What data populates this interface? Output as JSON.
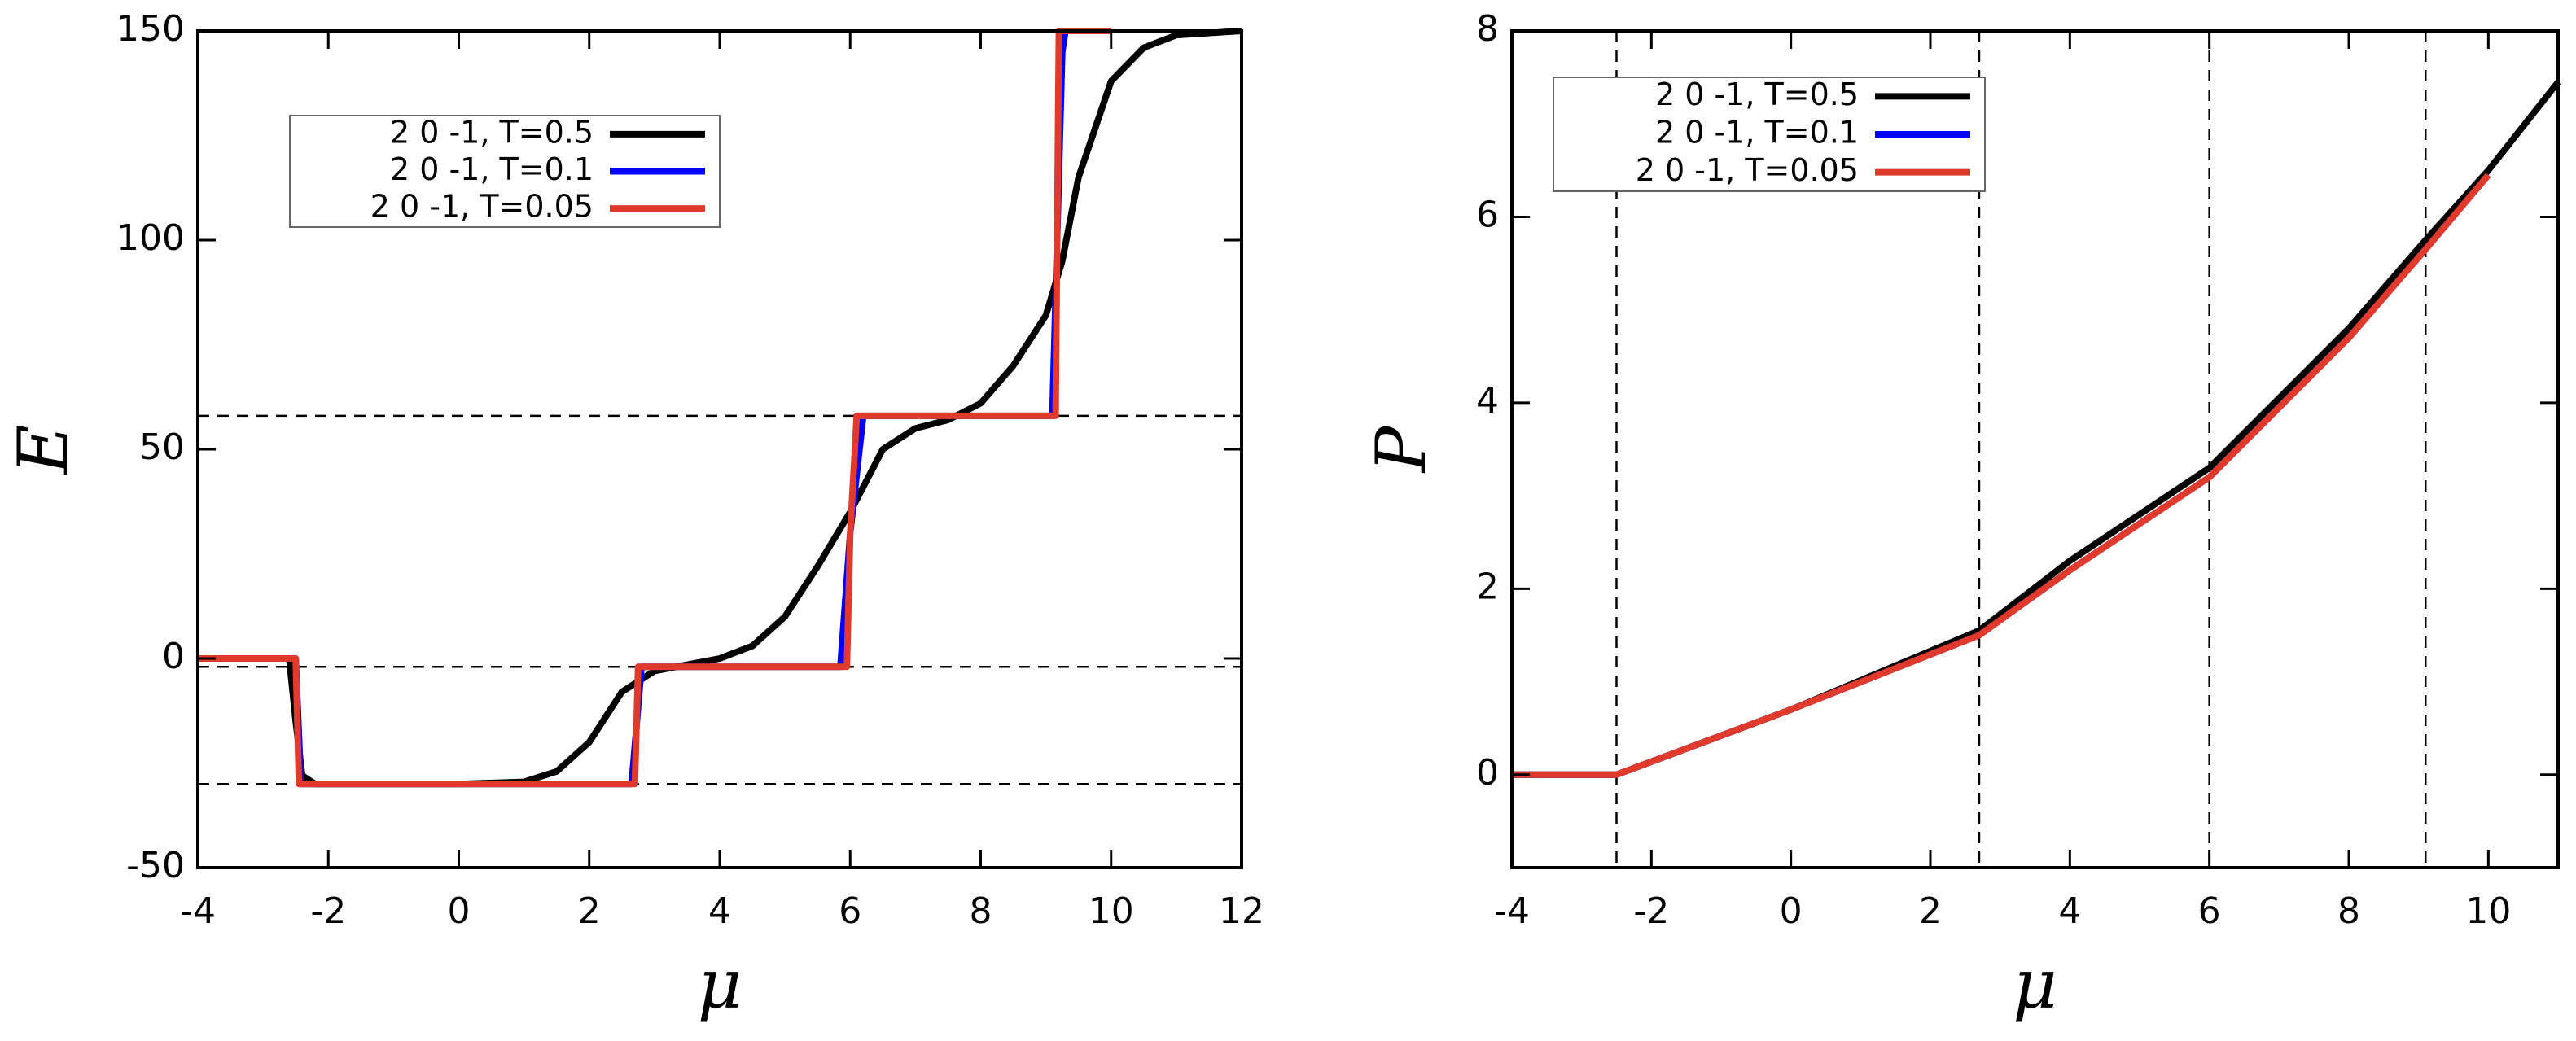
{
  "chart_data": [
    {
      "type": "line",
      "xlabel": "μ",
      "ylabel": "E",
      "xlim": [
        -4,
        12
      ],
      "ylim": [
        -50,
        150
      ],
      "xticks": [
        -4,
        -2,
        0,
        2,
        4,
        6,
        8,
        10,
        12
      ],
      "yticks": [
        -50,
        0,
        50,
        100,
        150
      ],
      "hlines": [
        58,
        -2,
        -30
      ],
      "legend": "upper-left",
      "series": [
        {
          "name": "2 0 -1, T=0.5",
          "color": "#000000",
          "x": [
            -4,
            -2.6,
            -2.5,
            -2.4,
            -2.2,
            -1,
            0,
            1,
            1.5,
            2,
            2.5,
            3,
            3.5,
            4,
            4.5,
            5,
            5.5,
            6,
            6.5,
            7,
            7.5,
            8,
            8.5,
            9,
            9.25,
            9.5,
            10,
            10.5,
            11,
            12
          ],
          "values": [
            0,
            0,
            -15,
            -28,
            -30,
            -30,
            -30,
            -29.5,
            -27,
            -20,
            -8,
            -3,
            -1.5,
            0,
            3,
            10,
            22,
            35,
            50,
            55,
            57,
            61,
            70,
            82,
            95,
            115,
            138,
            146,
            149,
            150
          ]
        },
        {
          "name": "2 0 -1, T=0.1",
          "color": "#0000ff",
          "x": [
            -4,
            -2.5,
            -2.42,
            2.65,
            2.8,
            5.85,
            6.0,
            6.2,
            9.1,
            9.25,
            9.3
          ],
          "values": [
            0,
            0,
            -30,
            -30,
            -2,
            -2,
            30,
            58,
            58,
            145,
            150
          ]
        },
        {
          "name": "2 0 -1, T=0.05",
          "color": "#e03a2c",
          "x": [
            -4,
            -2.5,
            -2.45,
            2.7,
            2.75,
            5.95,
            6.0,
            6.1,
            9.15,
            9.2,
            10
          ],
          "values": [
            0,
            0,
            -30,
            -30,
            -2,
            -2,
            30,
            58,
            58,
            150,
            150
          ]
        }
      ]
    },
    {
      "type": "line",
      "xlabel": "μ",
      "ylabel": "P",
      "xlim": [
        -4,
        11
      ],
      "ylim": [
        -1,
        8
      ],
      "xticks": [
        -4,
        -2,
        0,
        2,
        4,
        6,
        8,
        10
      ],
      "yticks": [
        0,
        2,
        4,
        6,
        8
      ],
      "vlines": [
        -2.5,
        2.7,
        6,
        9.1
      ],
      "legend": "upper-left",
      "series": [
        {
          "name": "2 0 -1, T=0.5",
          "color": "#000000",
          "x": [
            -4,
            -2.5,
            0,
            2.7,
            4,
            6,
            8,
            9.1,
            10,
            11
          ],
          "values": [
            0,
            0,
            0.7,
            1.55,
            2.3,
            3.3,
            4.8,
            5.75,
            6.5,
            7.45
          ]
        },
        {
          "name": "2 0 -1, T=0.1",
          "color": "#0000ff",
          "x": [
            -4,
            -2.5,
            0,
            2.7,
            4,
            6,
            8,
            9.1,
            10
          ],
          "values": [
            0,
            0,
            0.7,
            1.5,
            2.2,
            3.2,
            4.7,
            5.65,
            6.45
          ]
        },
        {
          "name": "2 0 -1, T=0.05",
          "color": "#e03a2c",
          "x": [
            -4,
            -2.5,
            0,
            2.7,
            4,
            6,
            8,
            9.1,
            10
          ],
          "values": [
            0,
            0,
            0.7,
            1.5,
            2.2,
            3.2,
            4.7,
            5.65,
            6.45
          ]
        }
      ]
    }
  ]
}
